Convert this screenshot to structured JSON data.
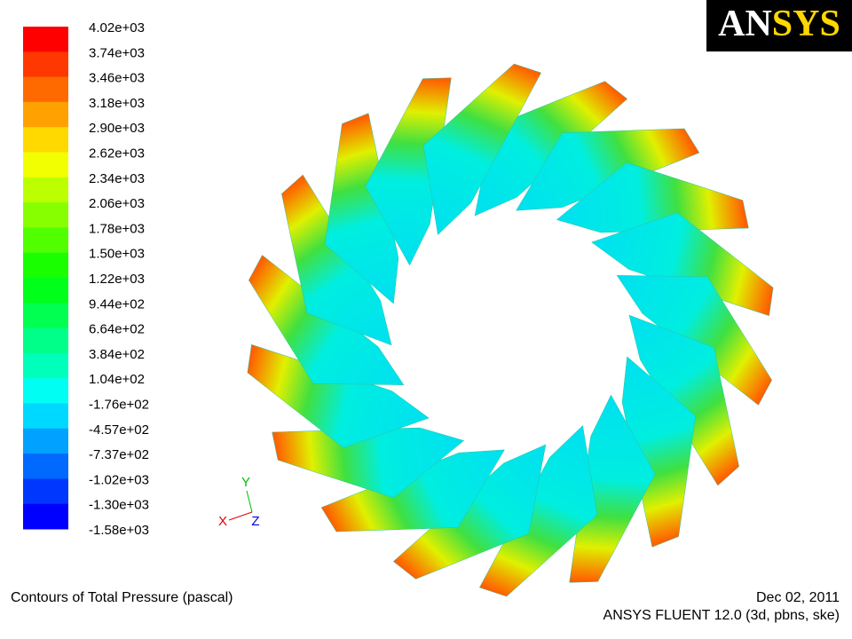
{
  "colorbar": {
    "labels": [
      "4.02e+03",
      "3.74e+03",
      "3.46e+03",
      "3.18e+03",
      "2.90e+03",
      "2.62e+03",
      "2.34e+03",
      "2.06e+03",
      "1.78e+03",
      "1.50e+03",
      "1.22e+03",
      "9.44e+02",
      "6.64e+02",
      "3.84e+02",
      "1.04e+02",
      "-1.76e+02",
      "-4.57e+02",
      "-7.37e+02",
      "-1.02e+03",
      "-1.30e+03",
      "-1.58e+03"
    ]
  },
  "logo": [
    "AN",
    "SYS"
  ],
  "triad": {
    "y": "Y",
    "x": "X",
    "z": "Z"
  },
  "footer": {
    "title": "Contours of Total Pressure (pascal)",
    "date": "Dec 02, 2011",
    "version": "ANSYS FLUENT 12.0 (3d, pbns, ske)"
  }
}
